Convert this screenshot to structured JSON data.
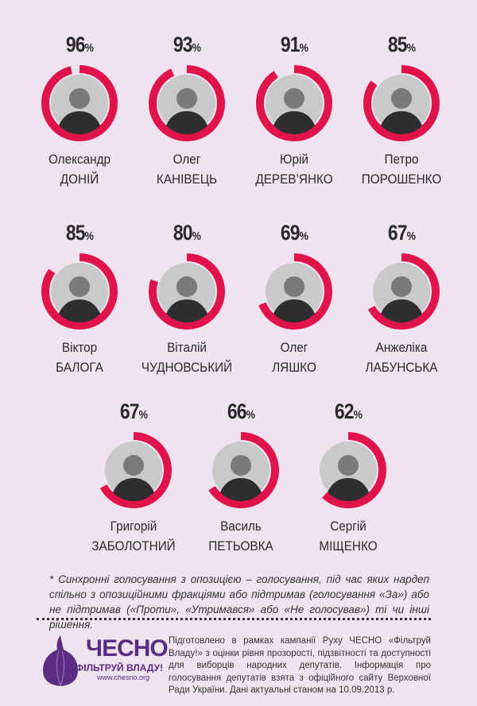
{
  "accent_color": "#e0134a",
  "deputies": [
    {
      "percent": 96,
      "first_name": "Олександр",
      "last_name": "ДОНІЙ"
    },
    {
      "percent": 93,
      "first_name": "Олег",
      "last_name": "КАНІВЕЦЬ"
    },
    {
      "percent": 91,
      "first_name": "Юрій",
      "last_name": "ДЕРЕВ’ЯНКО"
    },
    {
      "percent": 85,
      "first_name": "Петро",
      "last_name": "ПОРОШЕНКО"
    },
    {
      "percent": 85,
      "first_name": "Віктор",
      "last_name": "БАЛОГА"
    },
    {
      "percent": 80,
      "first_name": "Віталій",
      "last_name": "ЧУДНОВСЬКИЙ"
    },
    {
      "percent": 69,
      "first_name": "Олег",
      "last_name": "ЛЯШКО"
    },
    {
      "percent": 67,
      "first_name": "Анжеліка",
      "last_name": "ЛАБУНСЬКА"
    },
    {
      "percent": 67,
      "first_name": "Григорій",
      "last_name": "ЗАБОЛОТНИЙ"
    },
    {
      "percent": 66,
      "first_name": "Василь",
      "last_name": "ПЕТЬОВКА"
    },
    {
      "percent": 62,
      "first_name": "Сергій",
      "last_name": "МІЩЕНКО"
    }
  ],
  "percent_sign": "%",
  "footnote": "* Синхронні голосування з опозицією – голосування, під час яких нардеп спільно з опозиційними фракціями або підтримав (голосування «За») або не підтримав («Проти», «Утримався» або «Не голосував») ті чи інші рішення.",
  "footer": {
    "brand": "ЧЕСНО",
    "slogan": "ФІЛЬТРУЙ ВЛАДУ!",
    "url": "www.chesno.org",
    "credits": "Підготовлено в рамках кампанії Руху ЧЕСНО «Фільтруй Владу!» з оцінки рівня прозорості, підзвітності та доступності для виборців народних депутатів. Інформація про голосування депутатів взята з офіційного сайту Верховної Ради України. Дані актуальні станом на 10.09.2013 р."
  }
}
